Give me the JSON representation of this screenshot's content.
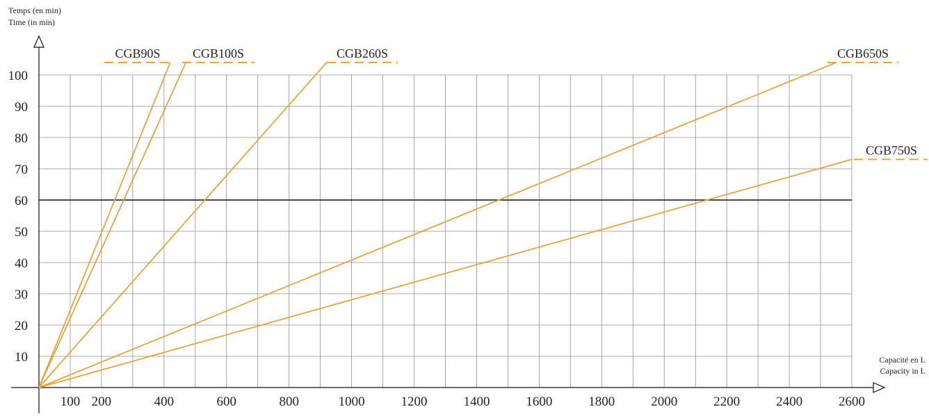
{
  "chart_data": {
    "type": "line",
    "x_axis": {
      "label_fr": "Capacité en L",
      "label_en": "Capacity in L",
      "range": [
        0,
        2600
      ],
      "ticks": [
        100,
        200,
        400,
        600,
        800,
        1000,
        1200,
        1400,
        1600,
        1800,
        2000,
        2200,
        2400,
        2600
      ],
      "grid_step": 100
    },
    "y_axis": {
      "label_fr": "Temps (en min)",
      "label_en": "Time (in min)",
      "range": [
        0,
        100
      ],
      "ticks": [
        10,
        20,
        30,
        40,
        50,
        60,
        70,
        80,
        90,
        100
      ],
      "grid_step": 10
    },
    "grid": true,
    "reference_line": {
      "y": 60
    },
    "series_color": "#e8a33c",
    "series": [
      {
        "name": "CGB90S",
        "x": [
          0,
          420
        ],
        "y": [
          0,
          104
        ]
      },
      {
        "name": "CGB100S",
        "x": [
          0,
          470
        ],
        "y": [
          0,
          104
        ]
      },
      {
        "name": "CGB260S",
        "x": [
          0,
          920
        ],
        "y": [
          0,
          104
        ]
      },
      {
        "name": "CGB650S",
        "x": [
          0,
          2550
        ],
        "y": [
          0,
          104
        ]
      },
      {
        "name": "CGB750S",
        "x": [
          0,
          2600
        ],
        "y": [
          0,
          73
        ]
      }
    ]
  }
}
